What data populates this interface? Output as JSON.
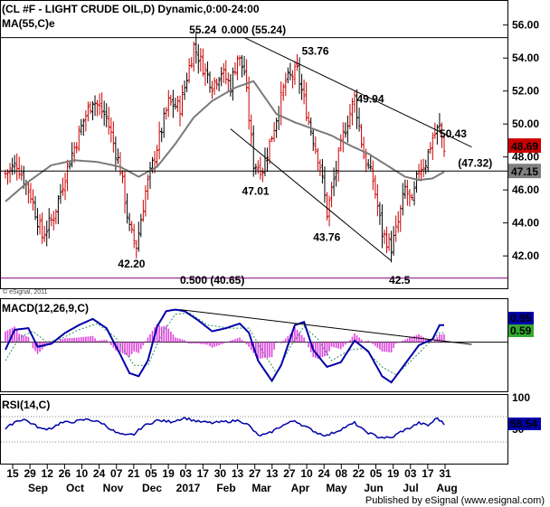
{
  "title": "(CL #F - LIGHT CRUDE OIL,D) Dynamic,0:00-24:00",
  "ma_label": "MA(55,C)e",
  "copyright": "© eSignal, 2011",
  "footer": "Published by eSignal (www.esignal.com)",
  "colors": {
    "price_bar": "#cc0000",
    "ma": "#7a7a7a",
    "macd": "#0000aa",
    "macd_signal": "#2e8b57",
    "histogram": "#dd44dd",
    "rsi": "#0000aa",
    "fib_text": "#800080",
    "last_price_box": "#cc0000",
    "ma_box": "#808080",
    "macd_box": "#0000aa",
    "signal_box": "#33aa33",
    "rsi_box": "#0000aa"
  },
  "chart_data": [
    {
      "type": "ohlc",
      "name": "price",
      "yaxis_ticks": [
        "42.00",
        "44.00",
        "46.00",
        "48.00",
        "50.00",
        "52.00",
        "54.00",
        "56.00"
      ],
      "ylim": [
        40.2,
        57.3
      ],
      "price_path_anchors": [
        [
          0,
          47.0
        ],
        [
          5,
          47.6
        ],
        [
          11,
          45.7
        ],
        [
          16,
          43.2
        ],
        [
          21,
          44.4
        ],
        [
          27,
          47.4
        ],
        [
          34,
          50.2
        ],
        [
          38,
          51.5
        ],
        [
          44,
          50.4
        ],
        [
          50,
          47.3
        ],
        [
          54,
          43.6
        ],
        [
          57,
          42.6
        ],
        [
          61,
          45.9
        ],
        [
          66,
          48.6
        ],
        [
          71,
          51.3
        ],
        [
          76,
          51.0
        ],
        [
          82,
          54.7
        ],
        [
          86,
          53.5
        ],
        [
          90,
          52.4
        ],
        [
          94,
          53.2
        ],
        [
          98,
          52.3
        ],
        [
          101,
          54.1
        ],
        [
          104,
          53.2
        ],
        [
          108,
          47.6
        ],
        [
          112,
          47.3
        ],
        [
          116,
          49.3
        ],
        [
          122,
          52.6
        ],
        [
          127,
          53.2
        ],
        [
          132,
          50.2
        ],
        [
          137,
          47.5
        ],
        [
          140,
          44.6
        ],
        [
          143,
          46.6
        ],
        [
          147,
          49.3
        ],
        [
          152,
          51.6
        ],
        [
          156,
          48.1
        ],
        [
          160,
          46.6
        ],
        [
          164,
          43.4
        ],
        [
          168,
          42.5
        ],
        [
          171,
          44.0
        ],
        [
          174,
          46.1
        ],
        [
          177,
          45.1
        ],
        [
          180,
          47.3
        ],
        [
          183,
          47.7
        ],
        [
          186,
          49.2
        ],
        [
          189,
          49.8
        ],
        [
          191,
          48.6
        ]
      ],
      "ma55_anchors": [
        [
          0,
          45.3
        ],
        [
          10,
          46.5
        ],
        [
          20,
          47.5
        ],
        [
          30,
          47.8
        ],
        [
          40,
          47.7
        ],
        [
          50,
          47.4
        ],
        [
          58,
          46.8
        ],
        [
          66,
          47.4
        ],
        [
          74,
          48.8
        ],
        [
          82,
          50.4
        ],
        [
          90,
          51.4
        ],
        [
          100,
          52.2
        ],
        [
          108,
          52.6
        ],
        [
          112,
          51.8
        ],
        [
          118,
          50.6
        ],
        [
          126,
          50.1
        ],
        [
          134,
          49.7
        ],
        [
          142,
          49.3
        ],
        [
          150,
          48.7
        ],
        [
          158,
          48.2
        ],
        [
          166,
          47.5
        ],
        [
          174,
          46.8
        ],
        [
          180,
          46.6
        ],
        [
          186,
          46.7
        ],
        [
          191,
          47.1
        ]
      ],
      "horizontal_lines": [
        55.24,
        47.15
      ],
      "trendlines": [
        {
          "from": [
            104,
            55.24
          ],
          "to": [
            203,
            48.6
          ]
        },
        {
          "from": [
            98,
            49.7
          ],
          "to": [
            168,
            41.7
          ]
        }
      ],
      "annotations": [
        {
          "text": "55.24",
          "x": 80,
          "y": 55.5
        },
        {
          "text": "0.000 (55.24)",
          "x": 94,
          "y": 55.5
        },
        {
          "text": "53.76",
          "x": 129,
          "y": 54.2
        },
        {
          "text": "49.94",
          "x": 153,
          "y": 51.3
        },
        {
          "text": "50.43",
          "x": 189,
          "y": 49.2
        },
        {
          "text": "(47.32)",
          "x": 197,
          "y": 47.4
        },
        {
          "text": "47.01",
          "x": 103,
          "y": 45.7
        },
        {
          "text": "43.76",
          "x": 134,
          "y": 42.9
        },
        {
          "text": "42.20",
          "x": 49,
          "y": 41.3
        },
        {
          "text": "42.5",
          "x": 167,
          "y": 40.3
        },
        {
          "text": "0.500 (40.65)",
          "x": 76,
          "y": 40.3
        }
      ],
      "fib_500_level": 40.65,
      "axis_labels_right": [
        {
          "text": "48.69",
          "value": 48.69,
          "style": "last_price"
        },
        {
          "text": "47.15",
          "value": 47.15,
          "style": "ma"
        }
      ]
    },
    {
      "type": "macd",
      "name": "MACD(12,26,9,C)",
      "label": "MACD(12,26,9,C)",
      "right_values": [
        {
          "text": "0.95",
          "style": "macd"
        },
        {
          "text": "0.59",
          "style": "signal"
        }
      ],
      "ylim": [
        -3.0,
        2.6
      ],
      "macd_anchors": [
        [
          0,
          -0.5
        ],
        [
          4,
          0.8
        ],
        [
          10,
          0.9
        ],
        [
          14,
          -0.3
        ],
        [
          20,
          -0.1
        ],
        [
          26,
          0.6
        ],
        [
          32,
          1.1
        ],
        [
          38,
          1.5
        ],
        [
          44,
          0.9
        ],
        [
          50,
          -0.8
        ],
        [
          54,
          -2.0
        ],
        [
          58,
          -2.2
        ],
        [
          62,
          -1.2
        ],
        [
          66,
          1.0
        ],
        [
          70,
          2.0
        ],
        [
          74,
          2.1
        ],
        [
          78,
          2.0
        ],
        [
          84,
          1.4
        ],
        [
          90,
          0.7
        ],
        [
          96,
          0.9
        ],
        [
          102,
          1.2
        ],
        [
          106,
          0.6
        ],
        [
          110,
          -1.2
        ],
        [
          116,
          -2.5
        ],
        [
          120,
          -1.5
        ],
        [
          126,
          1.1
        ],
        [
          130,
          1.3
        ],
        [
          134,
          -0.5
        ],
        [
          140,
          -1.6
        ],
        [
          146,
          -1.3
        ],
        [
          152,
          0.1
        ],
        [
          158,
          -0.6
        ],
        [
          164,
          -2.2
        ],
        [
          168,
          -2.6
        ],
        [
          172,
          -1.8
        ],
        [
          176,
          -1.0
        ],
        [
          180,
          -0.2
        ],
        [
          186,
          0.2
        ],
        [
          189,
          1.1
        ]
      ],
      "signal_anchors": [
        [
          0,
          -1.2
        ],
        [
          6,
          0.3
        ],
        [
          12,
          0.7
        ],
        [
          18,
          0.0
        ],
        [
          24,
          0.2
        ],
        [
          32,
          0.8
        ],
        [
          40,
          1.2
        ],
        [
          48,
          0.3
        ],
        [
          56,
          -1.5
        ],
        [
          62,
          -1.5
        ],
        [
          68,
          0.5
        ],
        [
          74,
          1.8
        ],
        [
          80,
          1.9
        ],
        [
          88,
          1.1
        ],
        [
          98,
          0.9
        ],
        [
          106,
          0.9
        ],
        [
          112,
          -0.6
        ],
        [
          118,
          -2.0
        ],
        [
          124,
          -0.3
        ],
        [
          130,
          1.0
        ],
        [
          136,
          0.2
        ],
        [
          142,
          -1.2
        ],
        [
          150,
          -0.5
        ],
        [
          156,
          -0.4
        ],
        [
          164,
          -1.6
        ],
        [
          170,
          -2.1
        ],
        [
          176,
          -1.3
        ],
        [
          182,
          -0.4
        ],
        [
          189,
          0.6
        ]
      ],
      "trendline": {
        "from": [
          76,
          2.1
        ],
        "to": [
          203,
          -0.15
        ]
      },
      "zero_line": 0
    },
    {
      "type": "line",
      "name": "RSI(14,C)",
      "label": "RSI(14,C)",
      "right_value": "58.54",
      "yaxis_ticks": [
        "50",
        "100"
      ],
      "ylim": [
        0,
        100
      ],
      "rsi_anchors": [
        [
          0,
          50
        ],
        [
          4,
          62
        ],
        [
          8,
          66
        ],
        [
          12,
          58
        ],
        [
          16,
          50
        ],
        [
          20,
          52
        ],
        [
          24,
          60
        ],
        [
          30,
          62
        ],
        [
          36,
          66
        ],
        [
          42,
          60
        ],
        [
          48,
          45
        ],
        [
          52,
          40
        ],
        [
          56,
          42
        ],
        [
          60,
          55
        ],
        [
          66,
          64
        ],
        [
          72,
          62
        ],
        [
          78,
          68
        ],
        [
          84,
          62
        ],
        [
          90,
          60
        ],
        [
          96,
          62
        ],
        [
          102,
          64
        ],
        [
          106,
          56
        ],
        [
          110,
          40
        ],
        [
          114,
          42
        ],
        [
          120,
          55
        ],
        [
          126,
          64
        ],
        [
          130,
          55
        ],
        [
          136,
          44
        ],
        [
          140,
          40
        ],
        [
          146,
          50
        ],
        [
          152,
          60
        ],
        [
          156,
          48
        ],
        [
          162,
          38
        ],
        [
          168,
          36
        ],
        [
          172,
          46
        ],
        [
          176,
          52
        ],
        [
          180,
          60
        ],
        [
          184,
          56
        ],
        [
          188,
          68
        ],
        [
          191,
          58
        ]
      ]
    }
  ],
  "x_axis": {
    "day_ticks": [
      "15",
      "29",
      "12",
      "26",
      "10",
      "24",
      "07",
      "21",
      "05",
      "19",
      "03",
      "17",
      "30",
      "13",
      "27",
      "13",
      "27",
      "10",
      "24",
      "08",
      "22",
      "05",
      "19",
      "03",
      "17",
      "31"
    ],
    "month_labels": [
      "Sep",
      "Oct",
      "Nov",
      "Dec",
      "2017",
      "Feb",
      "Mar",
      "Apr",
      "May",
      "Jun",
      "Jul",
      "Aug"
    ]
  }
}
